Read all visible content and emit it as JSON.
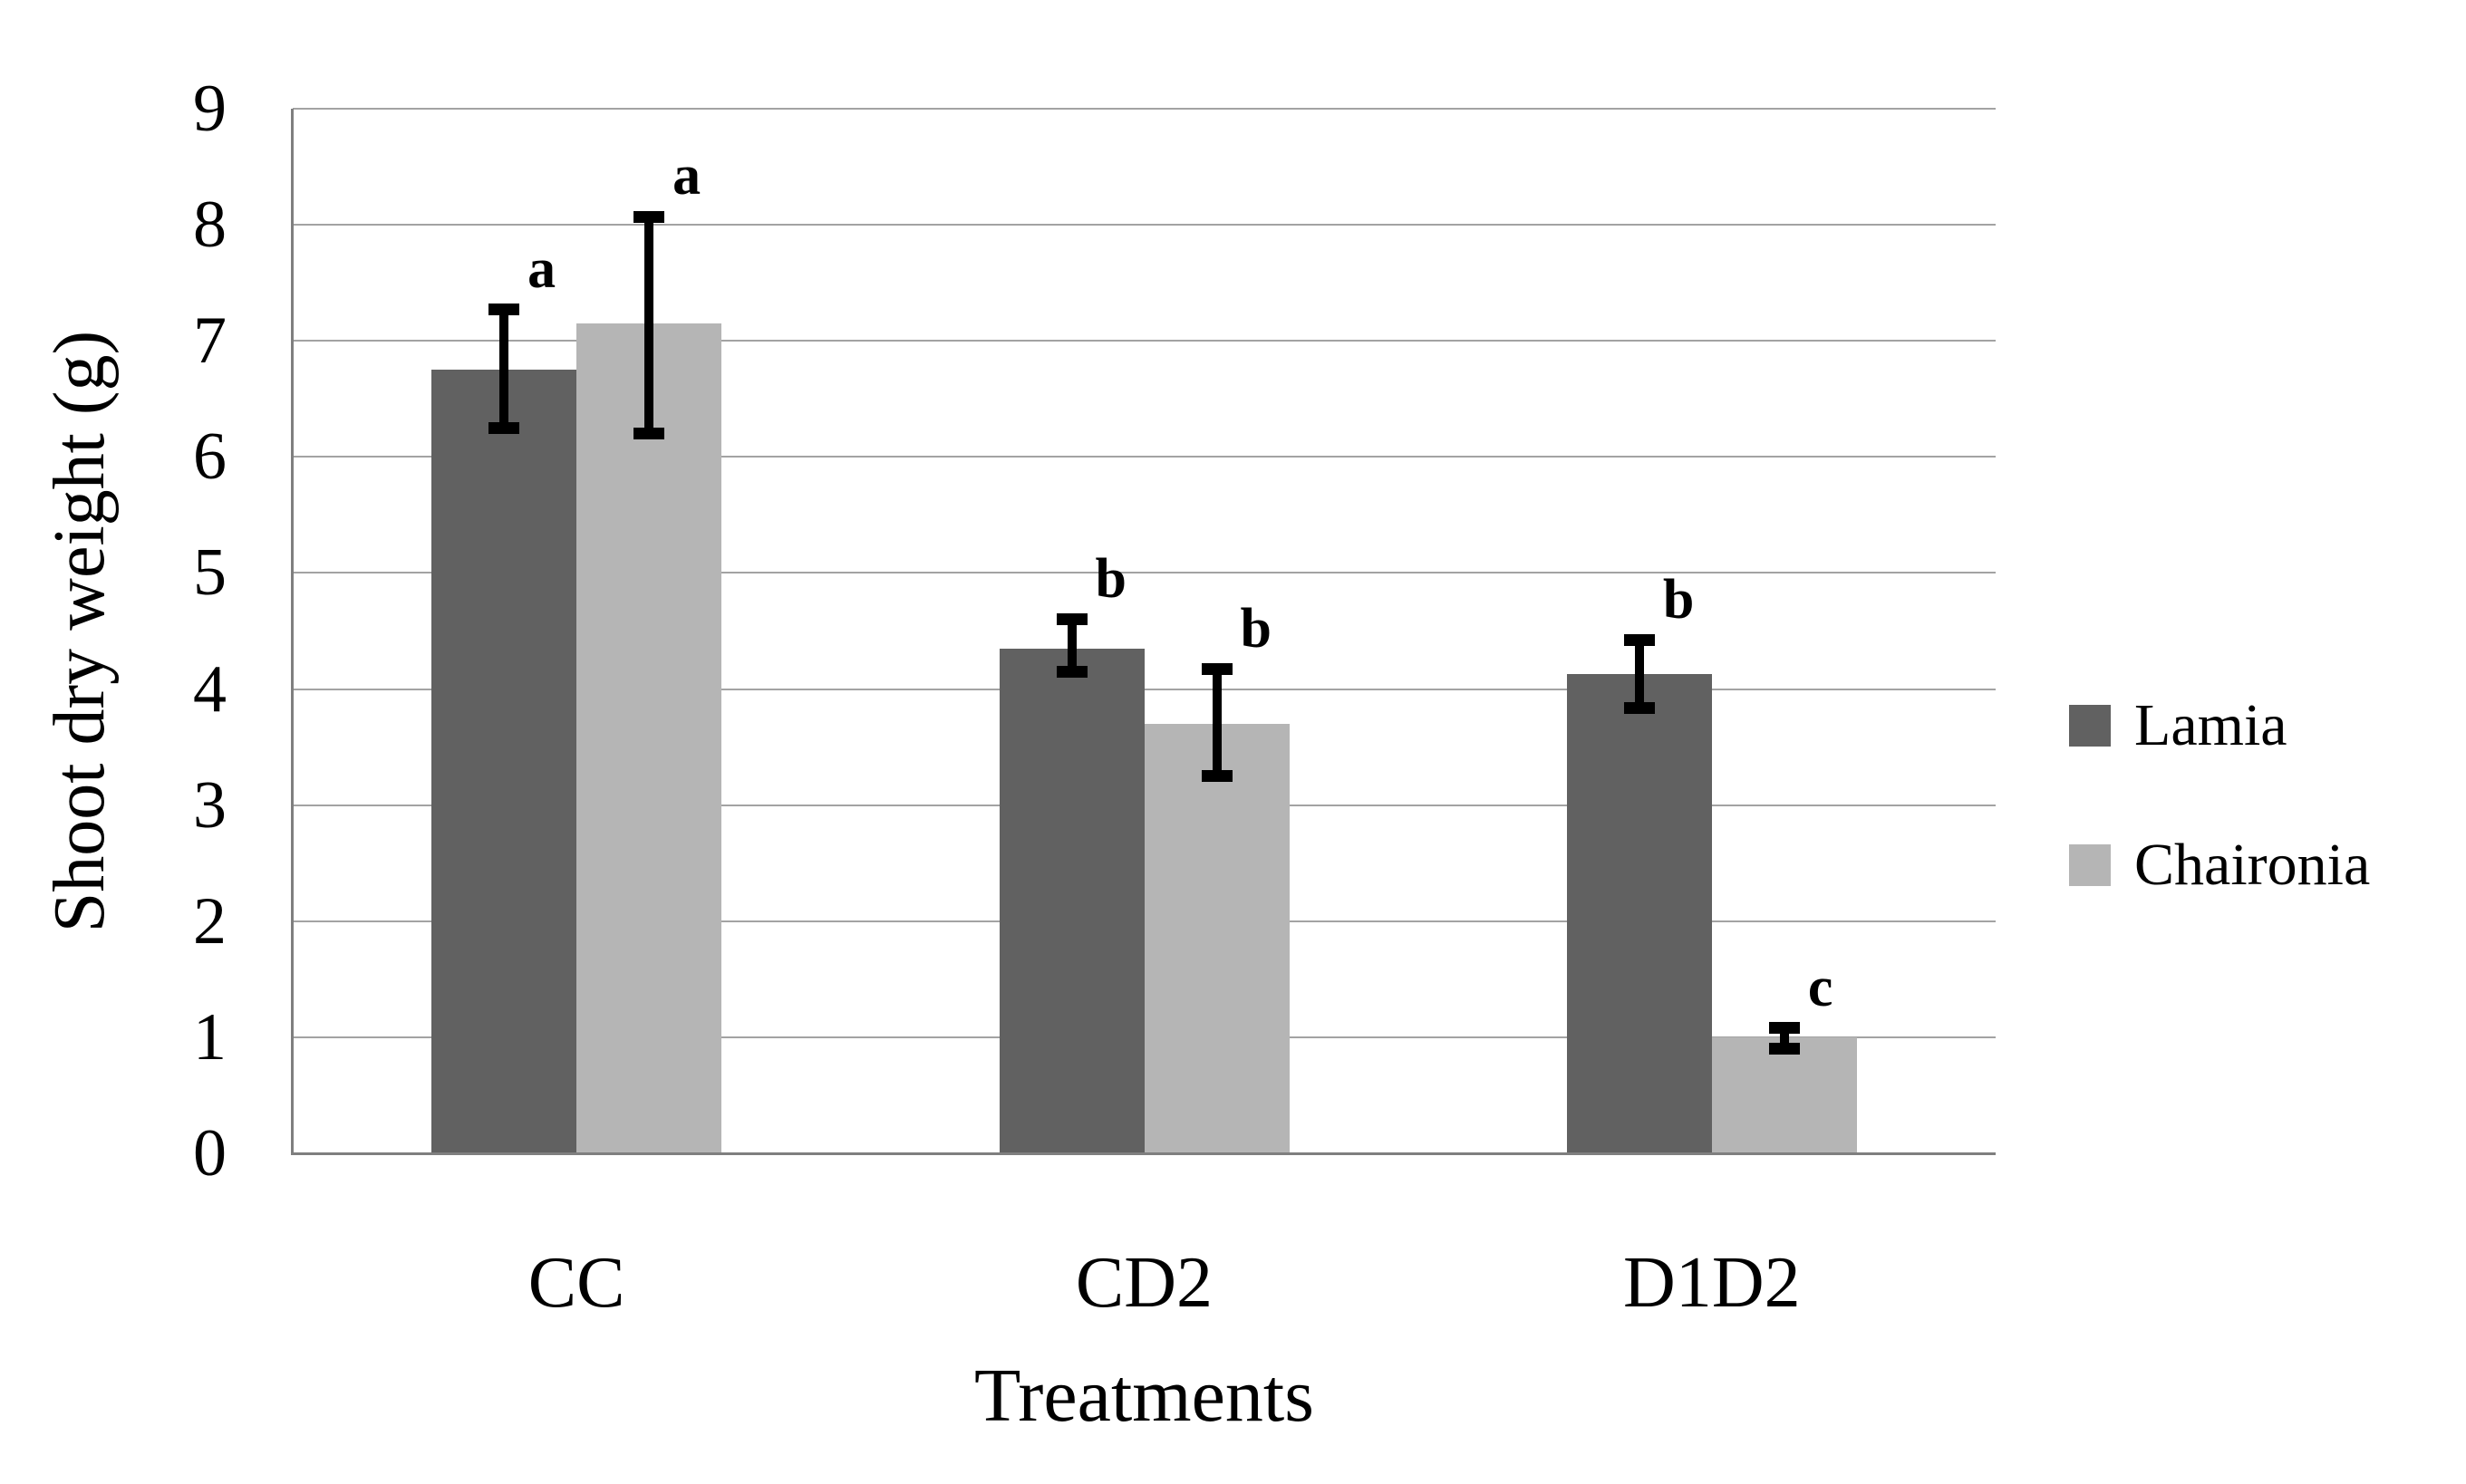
{
  "figure": {
    "background": "#ffffff"
  },
  "chart_data": {
    "type": "bar",
    "title": "",
    "xlabel": "Treatments",
    "ylabel": "Shoot dry weight (g)",
    "categories": [
      "CC",
      "CD2",
      "D1D2"
    ],
    "series": [
      {
        "name": "Lamia",
        "color": "#616161",
        "values": [
          6.75,
          4.35,
          4.13
        ],
        "error_low": [
          6.25,
          4.15,
          3.84
        ],
        "error_high": [
          7.27,
          4.6,
          4.42
        ],
        "sig_letters": [
          "a",
          "b",
          "b"
        ]
      },
      {
        "name": "Chaironia",
        "color": "#b5b5b5",
        "values": [
          7.15,
          3.7,
          1.0
        ],
        "error_low": [
          6.2,
          3.25,
          0.9
        ],
        "error_high": [
          8.07,
          4.17,
          1.08
        ],
        "sig_letters": [
          "a",
          "b",
          "c"
        ]
      }
    ],
    "ylim": [
      0,
      9
    ],
    "yticks": [
      0,
      1,
      2,
      3,
      4,
      5,
      6,
      7,
      8,
      9
    ],
    "grid": true,
    "legend_position": "right",
    "error_bar_color": "#000000",
    "gridline_color": "#a3a3a3",
    "axis_color": "#7f7f7f"
  }
}
